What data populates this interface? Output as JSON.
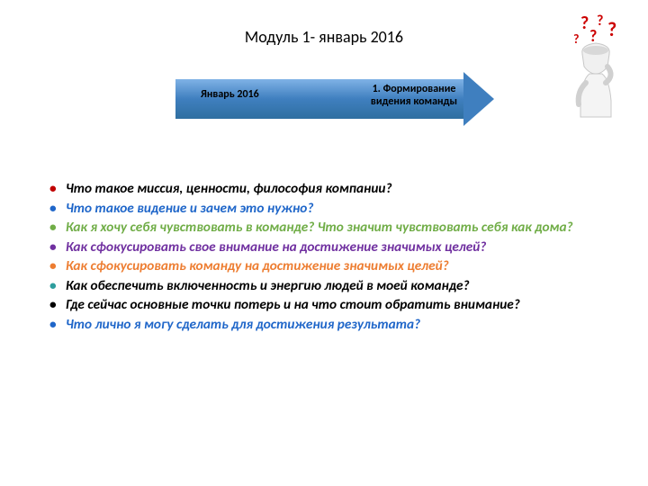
{
  "title": "Модуль 1- январь 2016",
  "arrow": {
    "left_label": "Январь 2016",
    "right_label": "1. Формирование видения команды",
    "gradient_top": "#7fb2e6",
    "gradient_mid": "#3f7fbf",
    "gradient_bot": "#2f6fa0"
  },
  "bullet_colors": {
    "red": "#c00000",
    "blue": "#1f66c9",
    "green": "#70ad47",
    "purple": "#7030a0",
    "orange": "#ed7d31",
    "teal": "#2e9e9e",
    "black": "#000000"
  },
  "bullets": [
    {
      "text": "Что такое миссия, ценности, философия компании?",
      "text_color": "black",
      "marker_color": "red"
    },
    {
      "text": "Что такое видение и зачем это нужно?",
      "text_color": "blue",
      "marker_color": "blue"
    },
    {
      "text": "Как я хочу себя чувствовать в команде? Что значит чувствовать себя как дома?",
      "text_color": "green",
      "marker_color": "green"
    },
    {
      "text": "Как сфокусировать свое внимание на достижение значимых целей?",
      "text_color": "purple",
      "marker_color": "purple"
    },
    {
      "text": "Как сфокусировать команду на достижение значимых целей?",
      "text_color": "orange",
      "marker_color": "orange"
    },
    {
      "text": "Как обеспечить включенность и энергию людей в моей команде?",
      "text_color": "black",
      "marker_color": "teal"
    },
    {
      "text": "Где сейчас основные точки потерь и на что стоит обратить внимание?",
      "text_color": "black",
      "marker_color": "black"
    },
    {
      "text": "Что лично я могу сделать для достижения результата?",
      "text_color": "blue",
      "marker_color": "blue"
    }
  ],
  "decor": {
    "qmark_color": "#cc0000",
    "figure_color": "#e8e8e8"
  }
}
